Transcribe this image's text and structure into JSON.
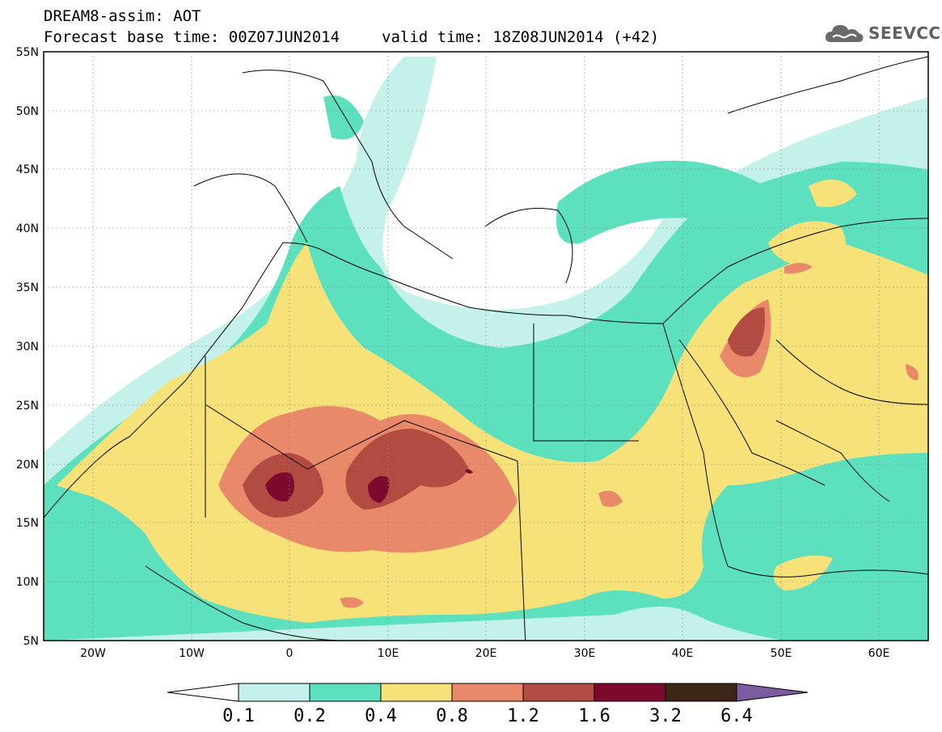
{
  "title": {
    "line1": "DREAM8-assim: AOT",
    "base_time_label": "Forecast base time: 00Z07JUN2014",
    "valid_time_label": "valid time: 18Z08JUN2014 (+42)"
  },
  "logo": {
    "icon": "cloud-icon",
    "text": "SEEVCCC"
  },
  "map": {
    "lat_labels": [
      "55N",
      "50N",
      "45N",
      "40N",
      "35N",
      "30N",
      "25N",
      "20N",
      "15N",
      "10N",
      "5N"
    ],
    "lon_labels": [
      "20W",
      "10W",
      "0",
      "10E",
      "20E",
      "30E",
      "40E",
      "50E",
      "60E"
    ],
    "region": "North Africa, Mediterranean and Middle East"
  },
  "colorbar": {
    "colors": [
      "#ffffff",
      "#c4f1ea",
      "#5de0bd",
      "#f7e27a",
      "#e8896a",
      "#b24b42",
      "#7d0a2c",
      "#3a2517",
      "#7b5ca0"
    ],
    "tick_labels": [
      "0.1",
      "0.2",
      "0.4",
      "0.8",
      "1.2",
      "1.6",
      "3.2",
      "6.4"
    ]
  }
}
